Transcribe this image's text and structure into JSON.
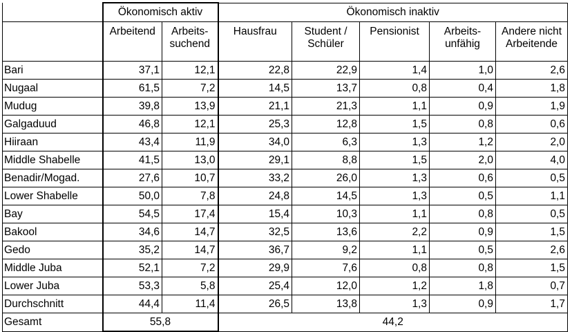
{
  "groups": {
    "active": "Ökonomisch aktiv",
    "inactive": "Ökonomisch inaktiv"
  },
  "columns": [
    "Arbeitend",
    "Arbeits-\nsuchend",
    "Hausfrau",
    "Student /\nSchüler",
    "Pensionist",
    "Arbeits-\nunfähig",
    "Andere nicht\nArbeitende"
  ],
  "rows": [
    {
      "region": "Bari",
      "values": [
        "37,1",
        "12,1",
        "22,8",
        "22,9",
        "1,4",
        "1,0",
        "2,6"
      ]
    },
    {
      "region": "Nugaal",
      "values": [
        "61,5",
        "7,2",
        "14,5",
        "13,7",
        "0,8",
        "0,4",
        "1,8"
      ]
    },
    {
      "region": "Mudug",
      "values": [
        "39,8",
        "13,9",
        "21,1",
        "21,3",
        "1,1",
        "0,9",
        "1,9"
      ]
    },
    {
      "region": "Galgaduud",
      "values": [
        "46,8",
        "12,1",
        "25,3",
        "12,8",
        "1,5",
        "0,8",
        "0,6"
      ]
    },
    {
      "region": "Hiiraan",
      "values": [
        "43,4",
        "11,9",
        "34,0",
        "6,3",
        "1,3",
        "1,2",
        "2,0"
      ]
    },
    {
      "region": "Middle Shabelle",
      "values": [
        "41,5",
        "13,0",
        "29,1",
        "8,8",
        "1,5",
        "2,0",
        "4,0"
      ]
    },
    {
      "region": "Benadir/Mogad.",
      "values": [
        "27,6",
        "10,7",
        "33,2",
        "26,0",
        "1,3",
        "0,6",
        "0,5"
      ]
    },
    {
      "region": "Lower Shabelle",
      "values": [
        "50,0",
        "7,8",
        "24,8",
        "14,5",
        "1,3",
        "0,5",
        "1,1"
      ]
    },
    {
      "region": "Bay",
      "values": [
        "54,5",
        "17,4",
        "15,4",
        "10,3",
        "1,1",
        "0,8",
        "0,5"
      ]
    },
    {
      "region": "Bakool",
      "values": [
        "34,6",
        "14,7",
        "32,5",
        "13,6",
        "2,2",
        "0,9",
        "1,5"
      ]
    },
    {
      "region": "Gedo",
      "values": [
        "35,2",
        "14,7",
        "36,7",
        "9,2",
        "1,1",
        "0,5",
        "2,6"
      ]
    },
    {
      "region": "Middle Juba",
      "values": [
        "52,1",
        "7,2",
        "29,9",
        "7,6",
        "0,8",
        "0,8",
        "1,5"
      ]
    },
    {
      "region": "Lower Juba",
      "values": [
        "53,3",
        "5,8",
        "25,4",
        "12,0",
        "1,2",
        "1,8",
        "0,7"
      ]
    },
    {
      "region": "Durchschnitt",
      "values": [
        "44,4",
        "11,4",
        "26,5",
        "13,8",
        "1,3",
        "0,9",
        "1,7"
      ]
    }
  ],
  "total": {
    "label": "Gesamt",
    "active": "55,8",
    "inactive": "44,2"
  }
}
